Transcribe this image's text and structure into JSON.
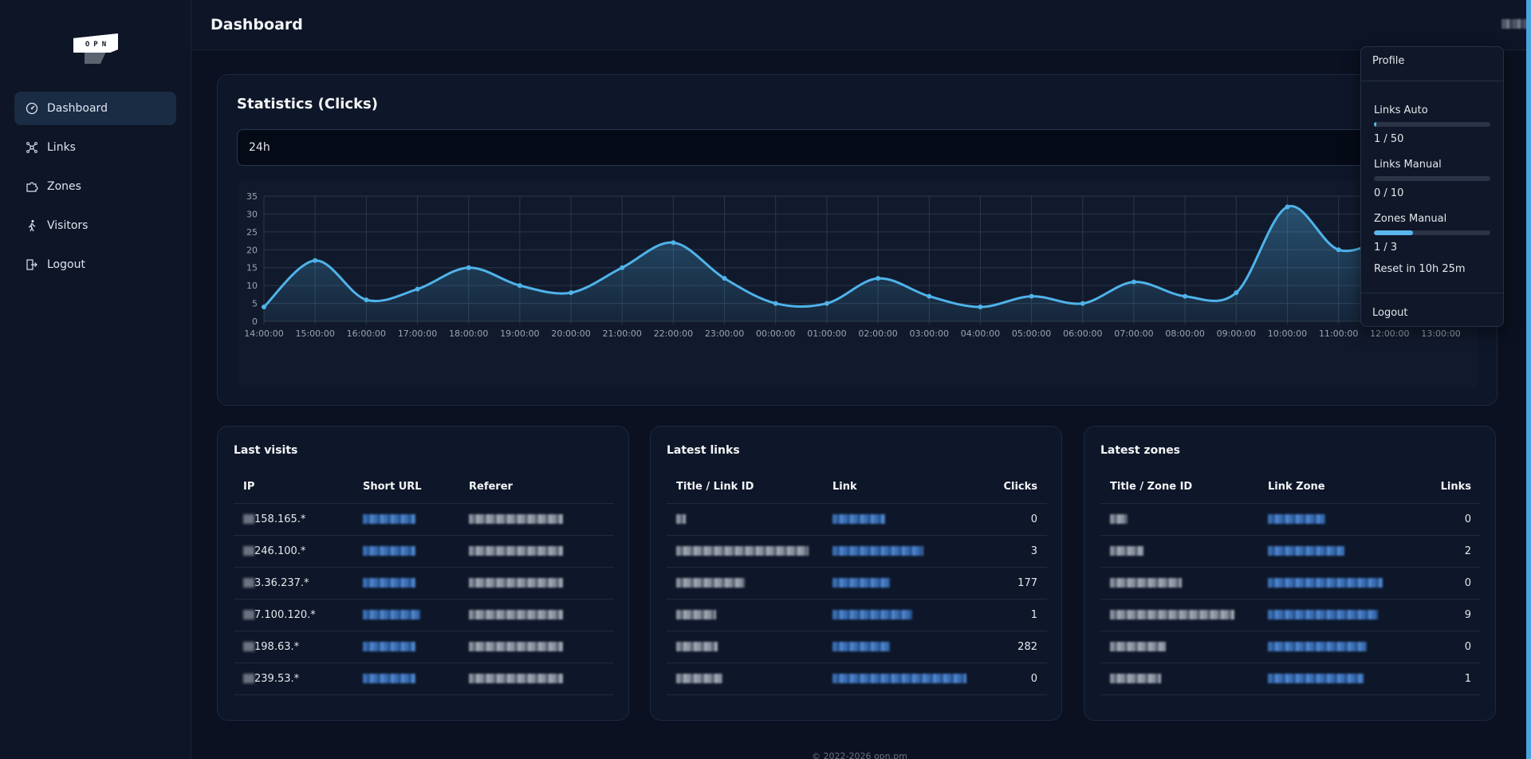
{
  "header": {
    "title": "Dashboard"
  },
  "sidebar": {
    "logo_text": "OPN",
    "items": [
      {
        "label": "Dashboard",
        "icon": "gauge-icon",
        "active": true
      },
      {
        "label": "Links",
        "icon": "network-icon",
        "active": false
      },
      {
        "label": "Zones",
        "icon": "puzzle-icon",
        "active": false
      },
      {
        "label": "Visitors",
        "icon": "walking-icon",
        "active": false
      },
      {
        "label": "Logout",
        "icon": "logout-icon",
        "active": false
      }
    ]
  },
  "stats": {
    "title": "Statistics (Clicks)",
    "range": "24h"
  },
  "chart_data": {
    "type": "area",
    "categories": [
      "14:00:00",
      "15:00:00",
      "16:00:00",
      "17:00:00",
      "18:00:00",
      "19:00:00",
      "20:00:00",
      "21:00:00",
      "22:00:00",
      "23:00:00",
      "00:00:00",
      "01:00:00",
      "02:00:00",
      "03:00:00",
      "04:00:00",
      "05:00:00",
      "06:00:00",
      "07:00:00",
      "08:00:00",
      "09:00:00",
      "10:00:00",
      "11:00:00",
      "12:00:00",
      "13:00:00"
    ],
    "values": [
      4,
      17,
      6,
      9,
      15,
      10,
      8,
      15,
      22,
      12,
      5,
      5,
      12,
      7,
      4,
      7,
      5,
      11,
      7,
      8,
      32,
      20,
      23,
      22
    ],
    "ylim": [
      0,
      35
    ],
    "yticks": [
      0,
      5,
      10,
      15,
      20,
      25,
      30,
      35
    ],
    "grid": true,
    "title": "",
    "xlabel": "",
    "ylabel": "",
    "color": "#4fb3ea"
  },
  "last_visits": {
    "title": "Last visits",
    "columns": [
      "IP",
      "Short URL",
      "Referer"
    ],
    "rows": [
      {
        "ip": "158.165.*",
        "url_w": 66,
        "ref_w": 118
      },
      {
        "ip": "246.100.*",
        "url_w": 66,
        "ref_w": 118
      },
      {
        "ip": "3.36.237.*",
        "url_w": 66,
        "ref_w": 118
      },
      {
        "ip": "7.100.120.*",
        "url_w": 72,
        "ref_w": 118
      },
      {
        "ip": "198.63.*",
        "url_w": 66,
        "ref_w": 118
      },
      {
        "ip": "239.53.*",
        "url_w": 66,
        "ref_w": 118
      }
    ]
  },
  "latest_links": {
    "title": "Latest links",
    "columns": [
      "Title / Link ID",
      "Link",
      "Clicks"
    ],
    "rows": [
      {
        "clicks": "0"
      },
      {
        "clicks": "3"
      },
      {
        "clicks": "177"
      },
      {
        "clicks": "1"
      },
      {
        "clicks": "282"
      },
      {
        "clicks": "0"
      }
    ]
  },
  "latest_zones": {
    "title": "Latest zones",
    "columns": [
      "Title / Zone ID",
      "Link Zone",
      "Links"
    ],
    "rows": [
      {
        "links": "0"
      },
      {
        "links": "2"
      },
      {
        "links": "0"
      },
      {
        "links": "9"
      },
      {
        "links": "0"
      },
      {
        "links": "1"
      }
    ]
  },
  "dropdown": {
    "profile": "Profile",
    "quotas": [
      {
        "label": "Links Auto",
        "value": "1 / 50",
        "fraction": 0.02
      },
      {
        "label": "Links Manual",
        "value": "0 / 10",
        "fraction": 0
      },
      {
        "label": "Zones Manual",
        "value": "1 / 3",
        "fraction": 0.333
      }
    ],
    "reset": "Reset in 10h 25m",
    "logout": "Logout"
  },
  "footer": "© 2022-2026 opn.pm"
}
